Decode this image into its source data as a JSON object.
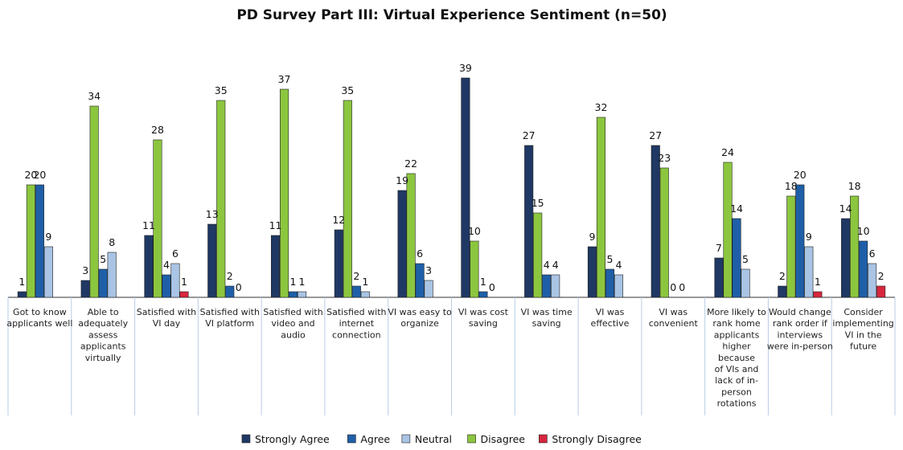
{
  "chart_data": {
    "type": "bar",
    "title": "PD Survey Part III: Virtual Experience Sentiment (n=50)",
    "xlabel": "",
    "ylabel": "",
    "ylim": [
      0,
      40
    ],
    "grid": false,
    "legend_position": "bottom",
    "categories": [
      "Got to know applicants well",
      "Able to adequately assess applicants virtually",
      "Satisfied with VI day",
      "Satisfied with VI platform",
      "Satisfied with video and audio",
      "Satisfied with internet connection",
      "VI was easy to organize",
      "VI was cost saving",
      "VI was time saving",
      "VI was effective",
      "VI was convenient",
      "More likely to rank home applicants higher because of VIs and lack of in-person rotations",
      "Would change rank order if interviews were in-person",
      "Consider implementing VI in the future"
    ],
    "category_lines": [
      [
        "Got to know",
        "applicants well"
      ],
      [
        "Able to",
        "adequately",
        "assess",
        "applicants",
        "virtually"
      ],
      [
        "Satisfied with",
        "VI day"
      ],
      [
        "Satisfied with",
        "VI platform"
      ],
      [
        "Satisfied with",
        "video and",
        "audio"
      ],
      [
        "Satisfied with",
        "internet",
        "connection"
      ],
      [
        "VI was easy to",
        "organize"
      ],
      [
        "VI was cost",
        "saving"
      ],
      [
        "VI was time",
        "saving"
      ],
      [
        "VI was",
        "effective"
      ],
      [
        "VI was",
        "convenient"
      ],
      [
        "More likely to",
        "rank home",
        "applicants",
        "higher",
        "because",
        "of VIs and",
        "lack of in-",
        "person",
        "rotations"
      ],
      [
        "Would change",
        "rank order if",
        "interviews",
        "were in-person"
      ],
      [
        "Consider",
        "implementing",
        "VI in the",
        "future"
      ]
    ],
    "series": [
      {
        "name": "Strongly Agree",
        "color": "#1f3864",
        "values": [
          1,
          3,
          11,
          13,
          11,
          12,
          19,
          39,
          27,
          9,
          27,
          7,
          2,
          14
        ]
      },
      {
        "name": "Agree",
        "color": "#1f5fa8",
        "values": [
          20,
          5,
          4,
          2,
          1,
          2,
          6,
          1,
          4,
          5,
          0,
          14,
          20,
          10
        ]
      },
      {
        "name": "Neutral",
        "color": "#a9c4e4",
        "values": [
          9,
          8,
          6,
          0,
          1,
          1,
          3,
          0,
          4,
          4,
          0,
          5,
          9,
          6
        ]
      },
      {
        "name": "Disagree",
        "color": "#8cc63f",
        "values": [
          20,
          34,
          28,
          35,
          37,
          35,
          22,
          10,
          15,
          32,
          23,
          24,
          18,
          18
        ]
      },
      {
        "name": "Strongly Disagree",
        "color": "#d7263d",
        "values": [
          0,
          0,
          1,
          0,
          0,
          0,
          0,
          0,
          0,
          0,
          0,
          0,
          1,
          2
        ]
      }
    ],
    "bar_order": [
      [
        "Strongly Agree",
        "Disagree",
        "Agree",
        "Neutral",
        "Strongly Disagree"
      ]
    ]
  }
}
